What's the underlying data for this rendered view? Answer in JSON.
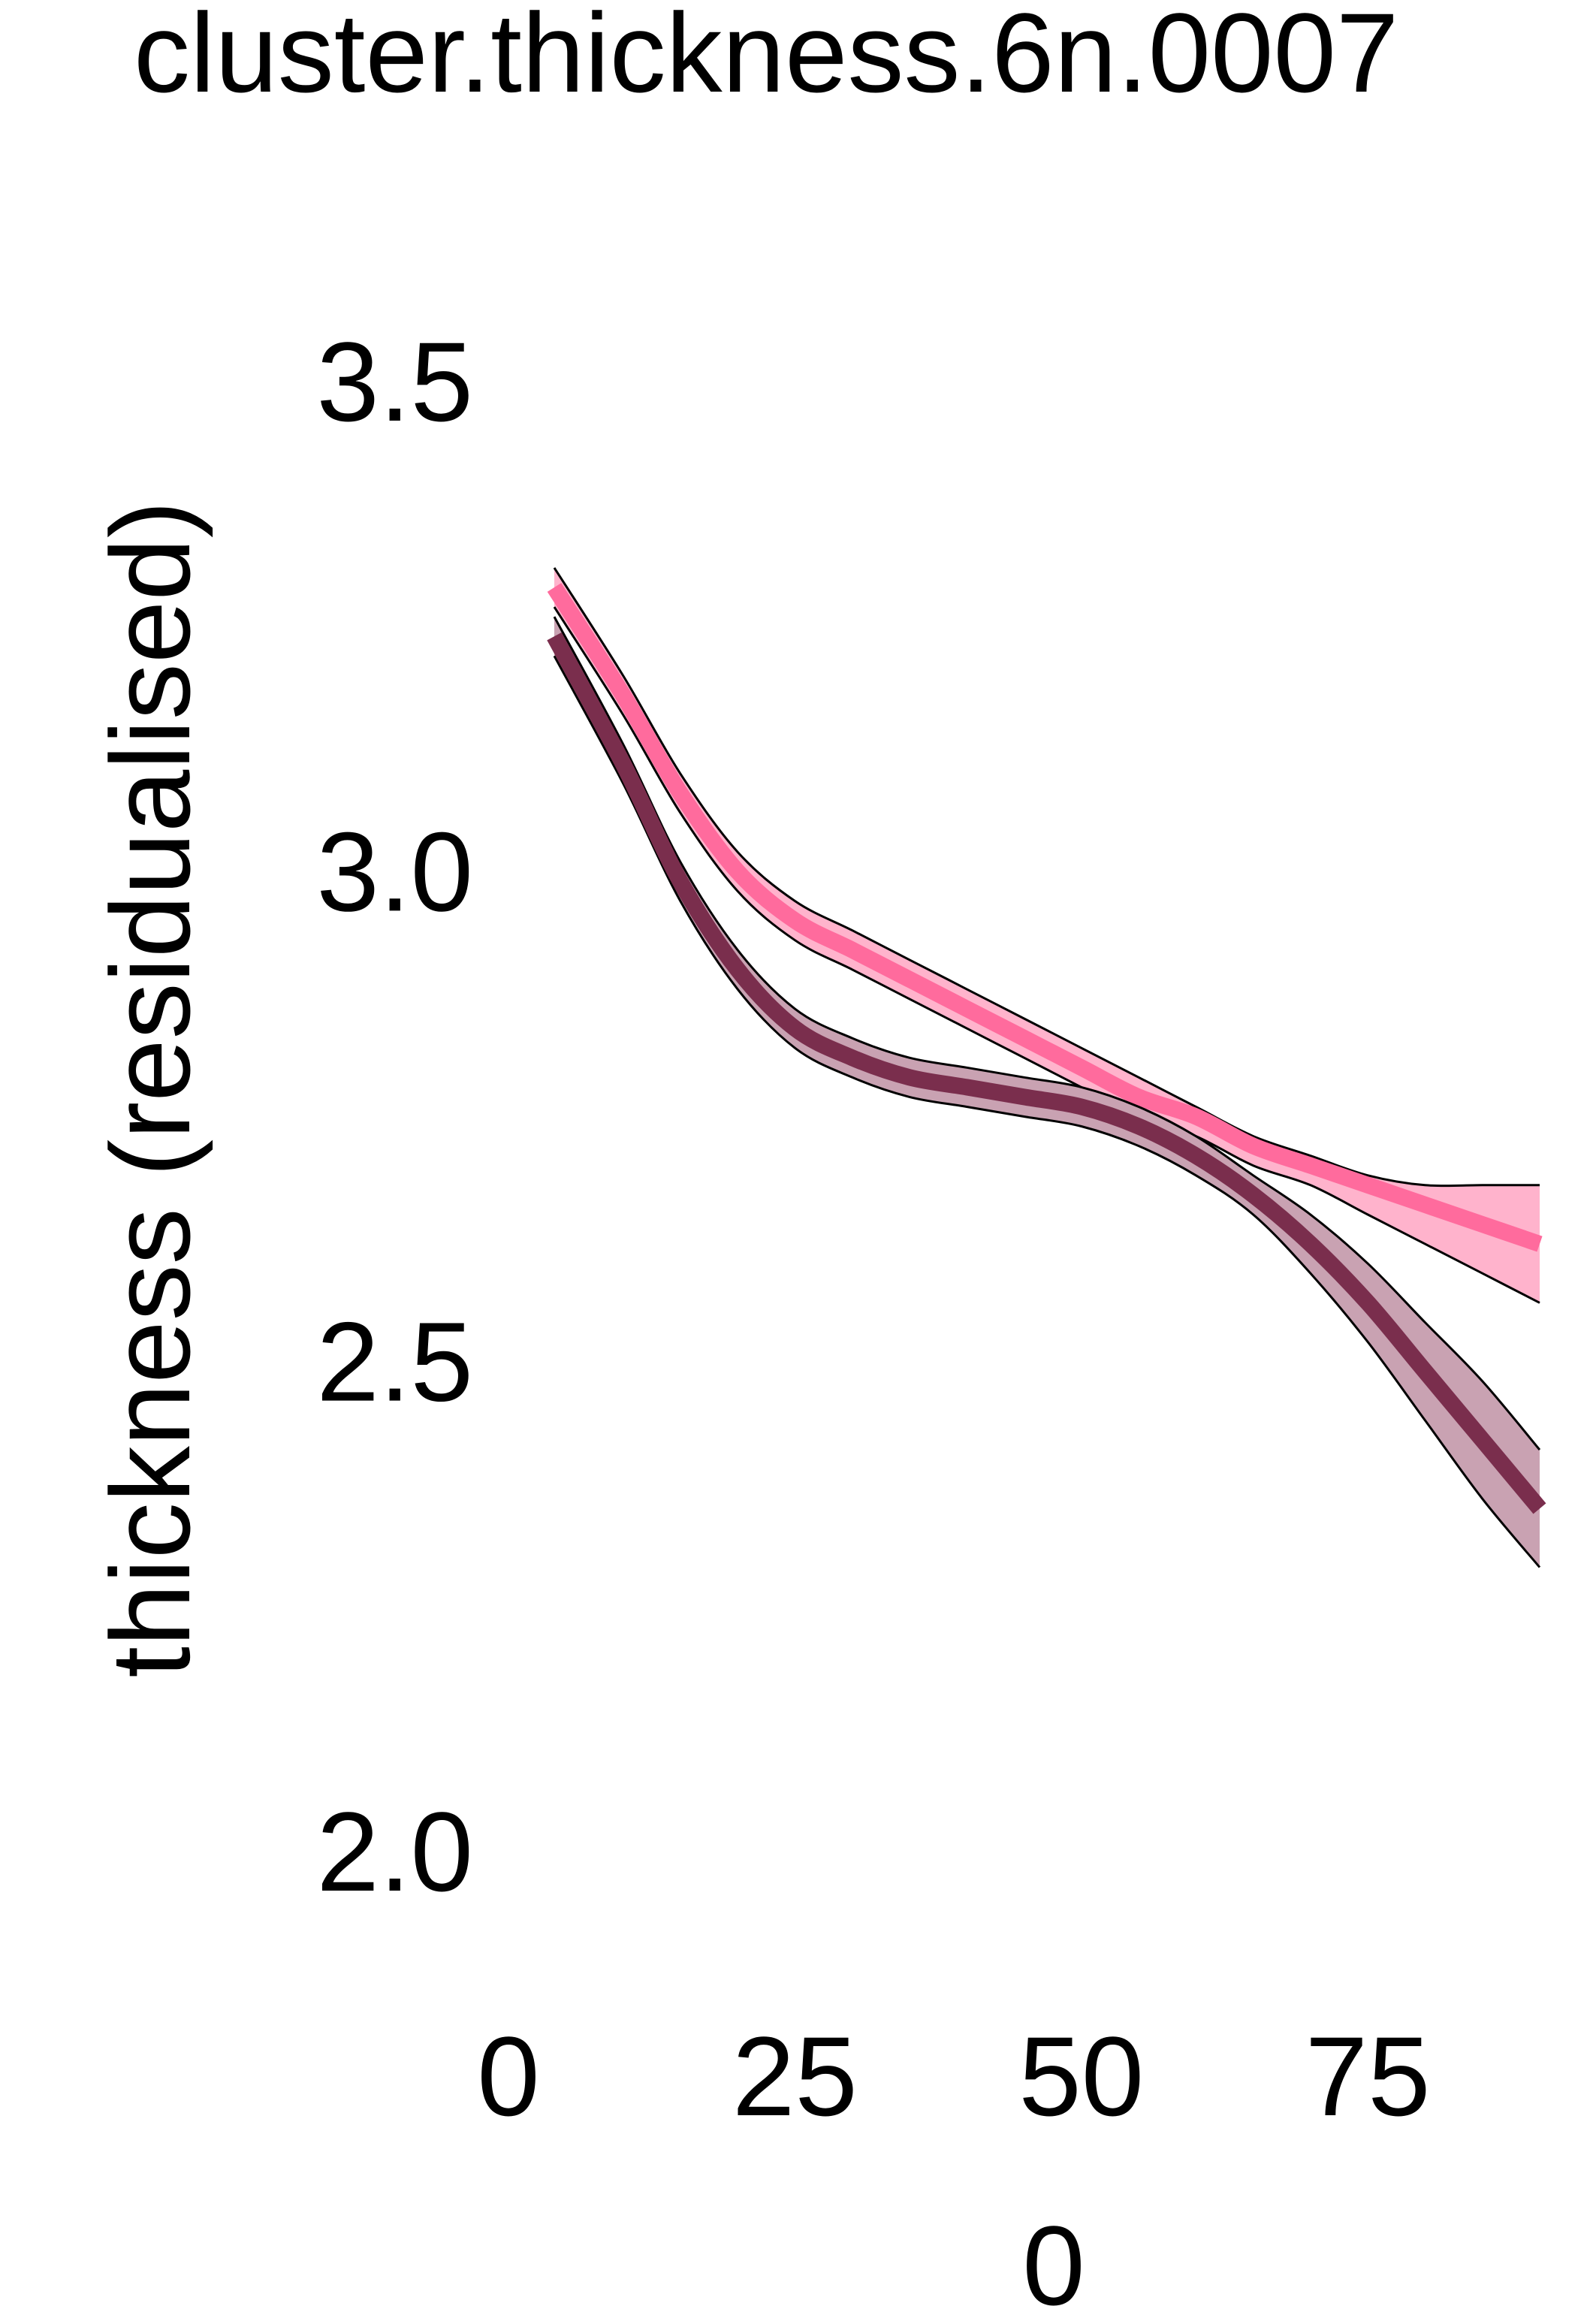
{
  "chart_data": {
    "type": "line",
    "title": "cluster.thickness.6n.0007",
    "xlabel": "0",
    "ylabel": "thickness (residualised)",
    "xlim": [
      0,
      90
    ],
    "ylim": [
      2.0,
      3.5
    ],
    "x_ticks": [
      "0",
      "25",
      "50",
      "75"
    ],
    "y_ticks": [
      "3.5",
      "3.0",
      "2.5",
      "2.0"
    ],
    "grid": false,
    "series": [
      {
        "color": "#ff6b9d",
        "band_color": "#ffb3cc",
        "x": [
          4,
          10,
          15,
          20,
          25,
          30,
          35,
          40,
          45,
          50,
          55,
          60,
          65,
          70,
          75,
          80,
          85,
          90
        ],
        "y": [
          3.29,
          3.18,
          3.08,
          3.0,
          2.95,
          2.92,
          2.89,
          2.86,
          2.83,
          2.8,
          2.77,
          2.75,
          2.72,
          2.7,
          2.68,
          2.66,
          2.64,
          2.62
        ],
        "upper": [
          3.31,
          3.2,
          3.1,
          3.02,
          2.97,
          2.94,
          2.91,
          2.88,
          2.85,
          2.82,
          2.79,
          2.76,
          2.73,
          2.71,
          2.69,
          2.68,
          2.68,
          2.68
        ],
        "lower": [
          3.27,
          3.16,
          3.06,
          2.98,
          2.93,
          2.9,
          2.87,
          2.84,
          2.81,
          2.78,
          2.75,
          2.73,
          2.7,
          2.68,
          2.65,
          2.62,
          2.59,
          2.56
        ]
      },
      {
        "color": "#7a2e4d",
        "band_color": "#c9a2b2",
        "x": [
          4,
          10,
          15,
          20,
          25,
          30,
          35,
          40,
          45,
          50,
          55,
          60,
          65,
          70,
          75,
          80,
          85,
          90
        ],
        "y": [
          3.24,
          3.11,
          2.99,
          2.9,
          2.84,
          2.81,
          2.79,
          2.78,
          2.77,
          2.76,
          2.74,
          2.71,
          2.67,
          2.62,
          2.56,
          2.49,
          2.42,
          2.35
        ],
        "upper": [
          3.26,
          3.13,
          3.01,
          2.92,
          2.86,
          2.83,
          2.81,
          2.8,
          2.79,
          2.78,
          2.76,
          2.73,
          2.69,
          2.65,
          2.6,
          2.54,
          2.48,
          2.41
        ],
        "lower": [
          3.22,
          3.09,
          2.97,
          2.88,
          2.82,
          2.79,
          2.77,
          2.76,
          2.75,
          2.74,
          2.72,
          2.69,
          2.65,
          2.59,
          2.52,
          2.44,
          2.36,
          2.29
        ]
      }
    ]
  }
}
